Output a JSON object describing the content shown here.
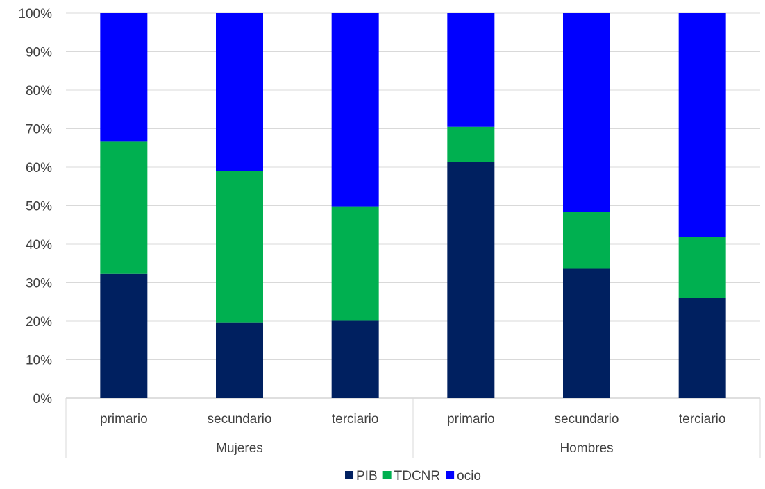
{
  "chart_data": {
    "type": "bar",
    "stacked": true,
    "normalized": true,
    "groups": [
      {
        "label": "Mujeres",
        "categories": [
          "primario",
          "secundario",
          "terciario"
        ]
      },
      {
        "label": "Hombres",
        "categories": [
          "primario",
          "secundario",
          "terciario"
        ]
      }
    ],
    "series": [
      {
        "name": "PIB",
        "color": "#002060",
        "values": [
          32.3,
          19.7,
          20.1,
          61.3,
          33.6,
          26.1
        ]
      },
      {
        "name": "TDCNR",
        "color": "#00B050",
        "values": [
          34.3,
          39.3,
          29.7,
          9.2,
          14.8,
          15.7
        ]
      },
      {
        "name": "ocio",
        "color": "#0000FF",
        "values": [
          33.4,
          41.0,
          50.2,
          29.5,
          51.6,
          58.2
        ]
      }
    ],
    "y_ticks": [
      "0%",
      "10%",
      "20%",
      "30%",
      "40%",
      "50%",
      "60%",
      "70%",
      "80%",
      "90%",
      "100%"
    ],
    "ylim": [
      0,
      100
    ],
    "grid": true,
    "legend_position": "bottom"
  }
}
